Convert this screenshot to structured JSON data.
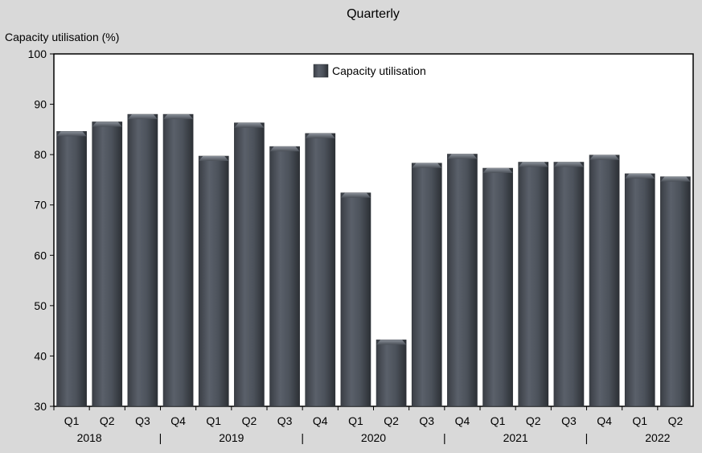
{
  "chart_data": {
    "type": "bar",
    "title": "Quarterly",
    "ylabel": "Capacity utilisation (%)",
    "xlabel": "",
    "ylim": [
      30,
      100
    ],
    "yticks": [
      30,
      40,
      50,
      60,
      70,
      80,
      90,
      100
    ],
    "categories": [
      "Q1",
      "Q2",
      "Q3",
      "Q4",
      "Q1",
      "Q2",
      "Q3",
      "Q4",
      "Q1",
      "Q2",
      "Q3",
      "Q4",
      "Q1",
      "Q2",
      "Q3",
      "Q4",
      "Q1",
      "Q2"
    ],
    "year_labels": [
      "2018",
      "|",
      "2019",
      "|",
      "2020",
      "|",
      "2021",
      "|",
      "2022"
    ],
    "year_label_positions": [
      1,
      3,
      5,
      7,
      9,
      11,
      13,
      15,
      17
    ],
    "series": [
      {
        "name": "Capacity utilisation",
        "color": "#4a4f57",
        "values": [
          84.6,
          86.5,
          88.0,
          88.0,
          79.7,
          86.3,
          81.6,
          84.2,
          72.4,
          43.2,
          78.3,
          80.1,
          77.3,
          78.5,
          78.5,
          79.9,
          76.2,
          75.6
        ]
      }
    ],
    "grid": false,
    "legend": "top-center"
  },
  "colors": {
    "background": "#d9d9d9",
    "plot_background": "#ffffff",
    "bar_fill": "#4a4f57",
    "bar_edge": "#2e3238"
  }
}
